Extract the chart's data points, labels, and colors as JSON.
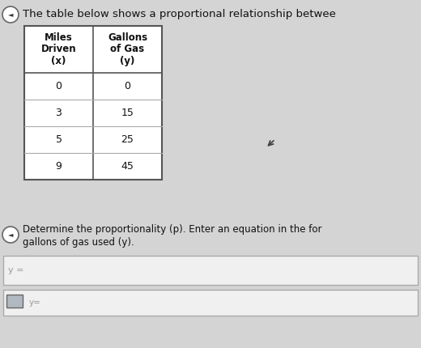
{
  "bg_color": "#d4d4d4",
  "title_text": "The table below shows a proportional relationship betwee",
  "title_fontsize": 9.5,
  "col1_header": [
    "Miles",
    "Driven",
    "(x)"
  ],
  "col2_header": [
    "Gallons",
    "of Gas",
    "(y)"
  ],
  "rows": [
    [
      "0",
      "0"
    ],
    [
      "3",
      "15"
    ],
    [
      "5",
      "25"
    ],
    [
      "9",
      "45"
    ]
  ],
  "question_text1": "Determine the proportionality (p). Enter an equation in the for",
  "question_text2": "gallons of gas used (y).",
  "input_label": "y =",
  "input2_label": "y=",
  "table_bg": "#e8e8e8",
  "table_border": "#555555",
  "input_bg": "#ebebeb"
}
